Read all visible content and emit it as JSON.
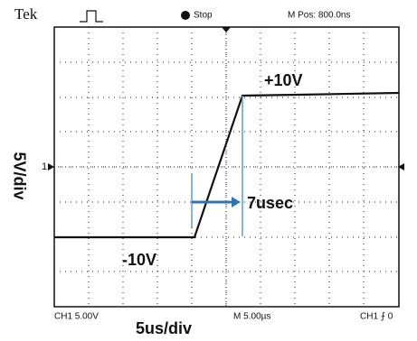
{
  "header": {
    "brand": "Tek",
    "status": "Stop",
    "position": "M Pos: 800.0ns"
  },
  "annotations": {
    "high": "+10V",
    "low": "-10V",
    "rise_time": "7usec",
    "vertical_scale": "5V/div",
    "horizontal_scale": "5us/div"
  },
  "channel_marker": "1",
  "footer": {
    "channel": "CH1  5.00V",
    "timebase": "M 5.00µs",
    "trigger": "CH1 ⨍ 0"
  }
}
